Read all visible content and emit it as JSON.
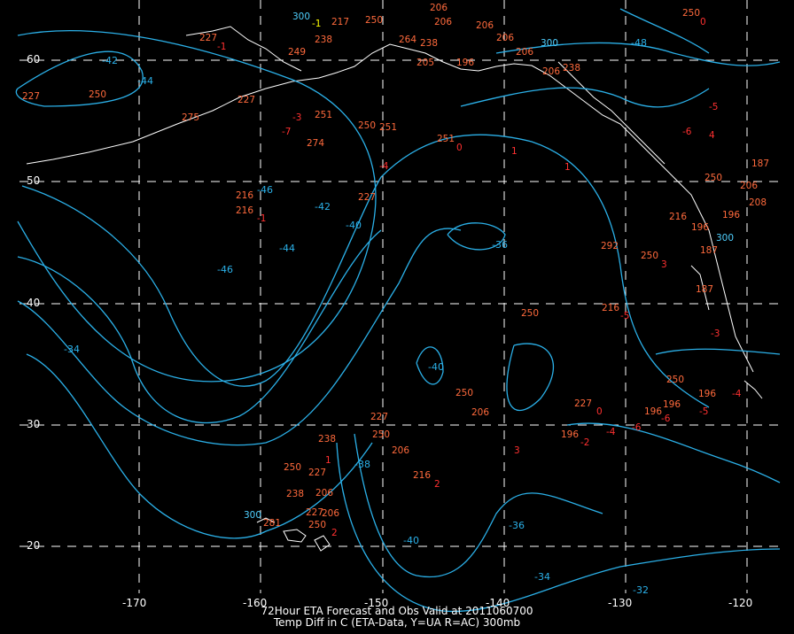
{
  "map": {
    "projection": "lat-lon",
    "colors": {
      "background": "#000000",
      "grid": "#ffffff",
      "coast": "#ffffff",
      "contour": "#2bb0e8",
      "height_obs": "#ff6a3c",
      "temp_diff_obs": "#ff3030",
      "station_300": "#4fd0ff",
      "station_value": "#ffff00"
    },
    "lat_labels": [
      "60",
      "50",
      "40",
      "30",
      "20"
    ],
    "lon_labels": [
      "-170",
      "-160",
      "-150",
      "-140",
      "-130",
      "-120"
    ],
    "contour_labels": [
      "-42",
      "-44",
      "-46",
      "-42",
      "-40",
      "-36",
      "-46",
      "-44",
      "-34",
      "-40",
      "-38",
      "-40",
      "-36",
      "-34",
      "-32",
      "-48"
    ],
    "obs_numbers": [
      "227",
      "-1",
      "238",
      "217",
      "250",
      "206",
      "206",
      "206",
      "250",
      "0",
      "300",
      "-1",
      "264",
      "238",
      "206",
      "206",
      "206",
      "249",
      "205",
      "196",
      "238",
      "300",
      "227",
      "250",
      "275",
      "227",
      "251",
      "250",
      "251",
      "274",
      "251",
      "227",
      "216",
      "216",
      "0",
      "1",
      "1",
      "4",
      "-1",
      "-4",
      "-7",
      "-6",
      "-5",
      "-3",
      "187",
      "187",
      "250",
      "206",
      "196",
      "208",
      "300",
      "216",
      "196",
      "187",
      "250",
      "292",
      "216",
      "250",
      "250",
      "3",
      "-5",
      "-3",
      "-4",
      "-2",
      "250",
      "206",
      "238",
      "227",
      "227",
      "250",
      "206",
      "216",
      "238",
      "206",
      "227",
      "250",
      "206",
      "281",
      "300",
      "250",
      "196",
      "-5",
      "196",
      "196",
      "-6",
      "-4",
      "-6",
      "227",
      "0",
      "196",
      "3",
      "2",
      "1",
      "2"
    ]
  },
  "caption": {
    "line1": "72Hour ETA Forecast and Obs Valid at 2011060700",
    "line2": "Temp Diff in C (ETA-Data, Y=UA R=AC) 300mb"
  }
}
